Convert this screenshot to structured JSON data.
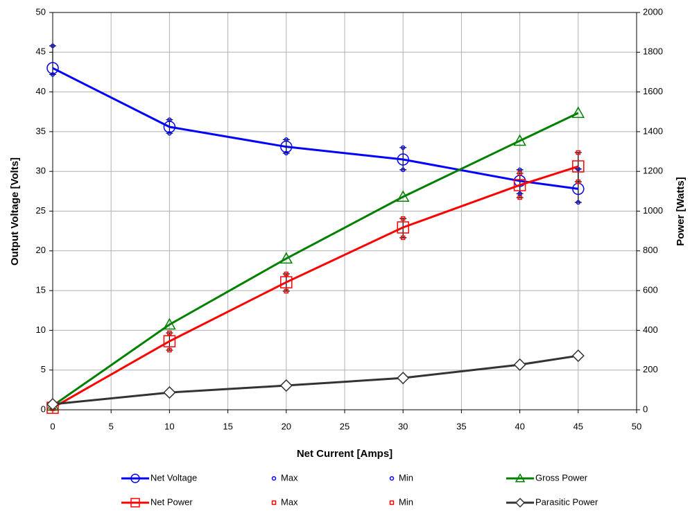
{
  "chart_data": {
    "type": "line",
    "x_label": "Net Current [Amps]",
    "y_label": "Output Voltage [Volts]",
    "y2_label": "Power [Watts]",
    "x": [
      0,
      10,
      20,
      30,
      40,
      45
    ],
    "xlim": [
      0,
      50
    ],
    "xticks": [
      0,
      5,
      10,
      15,
      20,
      25,
      30,
      35,
      40,
      45,
      50
    ],
    "ylim": [
      0,
      50
    ],
    "yticks": [
      0,
      5,
      10,
      15,
      20,
      25,
      30,
      35,
      40,
      45,
      50
    ],
    "y2lim": [
      0,
      2000
    ],
    "y2ticks": [
      0,
      200,
      400,
      600,
      800,
      1000,
      1200,
      1400,
      1600,
      1800,
      2000
    ],
    "grid": true,
    "series": [
      {
        "name": "Net Voltage",
        "color": "#0000ff",
        "marker": "circle",
        "line": true,
        "axis": "y",
        "values": [
          43,
          35.6,
          33.1,
          31.5,
          28.8,
          27.8
        ]
      },
      {
        "name": "Max",
        "color": "#0000ff",
        "marker": "circle",
        "line": false,
        "axis": "y",
        "values": [
          45.8,
          36.5,
          34,
          33,
          30.2,
          30.3
        ]
      },
      {
        "name": "Min",
        "color": "#0000ff",
        "marker": "circle",
        "line": false,
        "axis": "y",
        "values": [
          42.2,
          34.8,
          32.3,
          30.2,
          27.2,
          26.1
        ]
      },
      {
        "name": "Gross Power",
        "color": "#008000",
        "marker": "triangle",
        "line": true,
        "axis": "y2",
        "values": [
          20,
          429,
          761,
          1072,
          1354,
          1494
        ]
      },
      {
        "name": "Net Power",
        "color": "#ff0000",
        "marker": "square",
        "line": true,
        "axis": "y2",
        "values": [
          10,
          345,
          642,
          918,
          1131,
          1225
        ]
      },
      {
        "name": "Max",
        "color": "#ff0000",
        "marker": "square",
        "line": false,
        "axis": "y2",
        "values": [
          20,
          387,
          684,
          963,
          1190,
          1295
        ]
      },
      {
        "name": "Min",
        "color": "#ff0000",
        "marker": "square",
        "line": false,
        "axis": "y2",
        "values": [
          5,
          300,
          597,
          866,
          1068,
          1148
        ]
      },
      {
        "name": "Parasitic Power",
        "color": "#333333",
        "marker": "diamond",
        "line": true,
        "axis": "y2",
        "values": [
          28,
          87,
          122,
          160,
          227,
          272
        ]
      }
    ]
  }
}
